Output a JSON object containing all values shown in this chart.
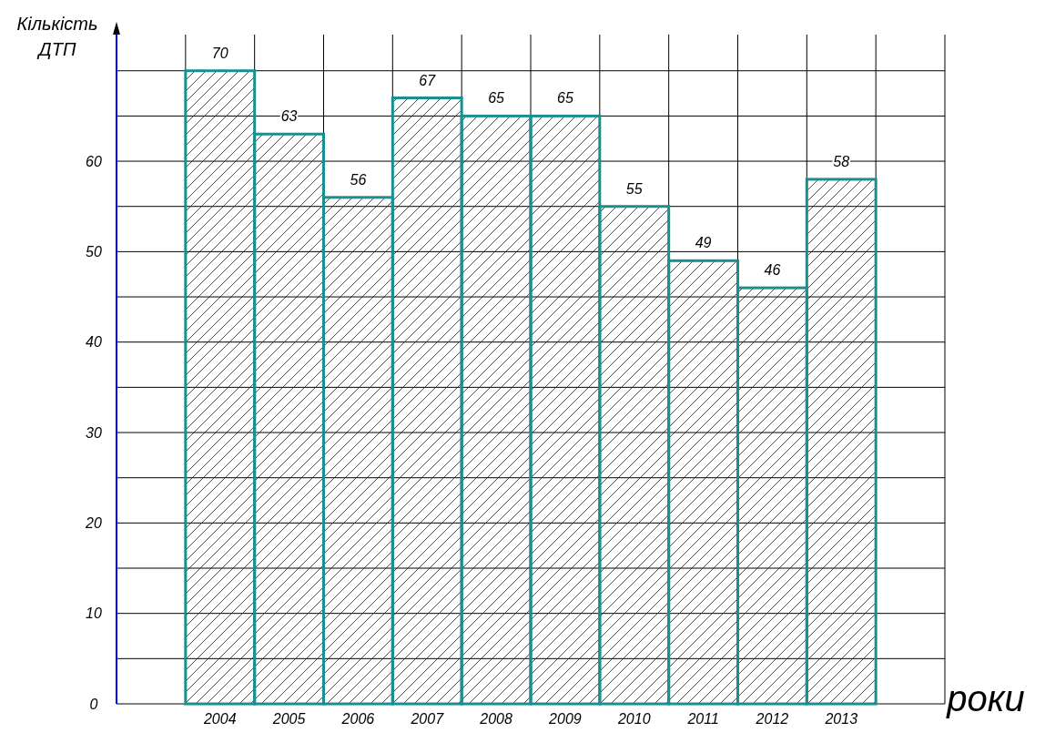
{
  "chart_data": {
    "type": "bar",
    "xlabel": "роки",
    "ylabel": "Кількість ДТП",
    "categories": [
      null,
      "2004",
      "2005",
      "2006",
      "2007",
      "2008",
      "2009",
      "2010",
      "2011",
      "2012",
      "2013",
      null
    ],
    "values": [
      null,
      70,
      63,
      56,
      67,
      65,
      65,
      55,
      49,
      46,
      58,
      null
    ],
    "color": "#1a8f8f",
    "data_labels": true,
    "grid": true,
    "ylim": [
      0,
      74
    ],
    "yticks": [
      0,
      {
        "value": 5,
        "label": null
      },
      10,
      {
        "value": 15,
        "label": null
      },
      20,
      {
        "value": 25,
        "label": null
      },
      30,
      {
        "value": 35,
        "label": null
      },
      40,
      {
        "value": 45,
        "label": null
      },
      50,
      {
        "value": 55,
        "label": null
      },
      60,
      {
        "value": 65,
        "label": null
      },
      {
        "value": 70,
        "label": null
      }
    ]
  }
}
